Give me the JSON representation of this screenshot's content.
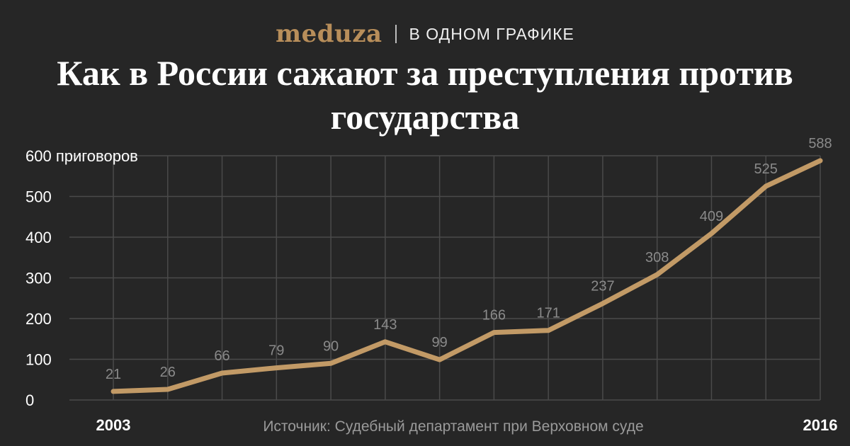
{
  "header": {
    "logo": "meduza",
    "section": "в одном графике"
  },
  "title": "Как в России сажают за преступления против государства",
  "source": "Источник: Судебный департамент при Верховном суде",
  "colors": {
    "background": "#262626",
    "line": "#c29a66",
    "grid": "#4a4a4a",
    "tick_text": "#ffffff",
    "label_text": "#8a8a8a",
    "logo": "#b88e5a"
  },
  "chart_data": {
    "type": "line",
    "x": [
      2003,
      2004,
      2005,
      2006,
      2007,
      2008,
      2009,
      2010,
      2011,
      2012,
      2013,
      2014,
      2015,
      2016
    ],
    "x_tick_labels": [
      {
        "year": 2003,
        "label": "2003"
      },
      {
        "year": 2016,
        "label": "2016"
      }
    ],
    "series": [
      {
        "values": [
          21,
          26,
          66,
          79,
          90,
          143,
          99,
          166,
          171,
          237,
          308,
          409,
          525,
          588
        ],
        "data_labels": [
          "21",
          "26",
          "66",
          "79",
          "90",
          "143",
          "99",
          "166",
          "171",
          "237",
          "308",
          "409",
          "525",
          "588"
        ]
      }
    ],
    "ylim": [
      0,
      600
    ],
    "y_ticks": [
      {
        "value": 0,
        "label": "0"
      },
      {
        "value": 100,
        "label": "100"
      },
      {
        "value": 200,
        "label": "200"
      },
      {
        "value": 300,
        "label": "300"
      },
      {
        "value": 400,
        "label": "400"
      },
      {
        "value": 500,
        "label": "500"
      },
      {
        "value": 600,
        "label": "600 приговоров"
      }
    ],
    "grid": true
  }
}
